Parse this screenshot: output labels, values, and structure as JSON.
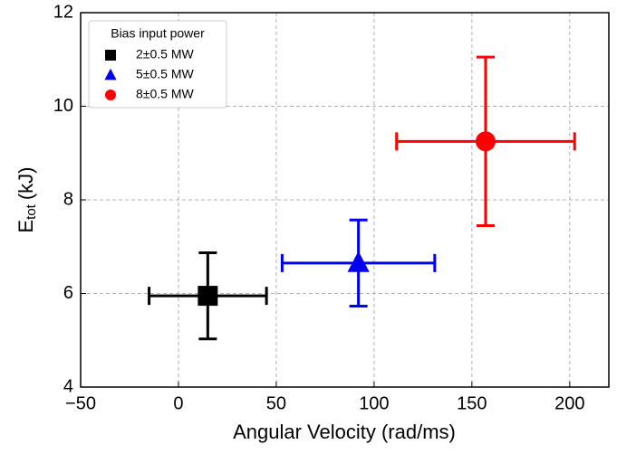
{
  "chart_data": {
    "type": "errorbar-scatter",
    "xlabel": "Angular Velocity (rad/ms)",
    "ylabel": {
      "main": "E",
      "sub": "tot",
      "unit": "(kJ)"
    },
    "xlim": [
      -50,
      220
    ],
    "ylim": [
      4,
      12
    ],
    "xticks": [
      {
        "value": -50,
        "label": "−50"
      },
      0,
      50,
      100,
      150,
      200
    ],
    "yticks": [
      4,
      6,
      8,
      10,
      12
    ],
    "grid": true,
    "legend_title": "Bias input power",
    "legend_position": "upper-left",
    "series": [
      {
        "name": "2±0.5 MW",
        "color": "#000000",
        "marker": "square",
        "x": [
          15
        ],
        "values": [
          5.95
        ],
        "xerr": [
          30
        ],
        "yerr": [
          0.92
        ]
      },
      {
        "name": "5±0.5 MW",
        "color": "#0000ee",
        "marker": "triangle",
        "x": [
          92
        ],
        "values": [
          6.65
        ],
        "xerr": [
          39
        ],
        "yerr": [
          0.92
        ]
      },
      {
        "name": "8±0.5 MW",
        "color": "#ff0000",
        "marker": "circle",
        "x": [
          157
        ],
        "values": [
          9.25
        ],
        "xerr": [
          45.5
        ],
        "yerr": [
          1.8
        ]
      }
    ]
  }
}
